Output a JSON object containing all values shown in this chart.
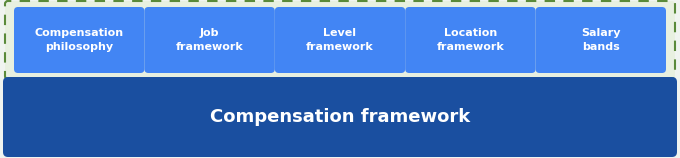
{
  "title": "Compensation framework",
  "title_color": "#ffffff",
  "title_box_color": "#1a4fa0",
  "sub_items": [
    "Compensation\nphilosophy",
    "Job\nframework",
    "Level\nframework",
    "Location\nframework",
    "Salary\nbands"
  ],
  "sub_box_color": "#4285f4",
  "sub_text_color": "#ffffff",
  "background_color": "#f0f4f0",
  "outer_box_facecolor": "#e8f0e0",
  "outer_border_color": "#5a8a3a",
  "fig_width": 6.8,
  "fig_height": 1.58,
  "dpi": 100
}
